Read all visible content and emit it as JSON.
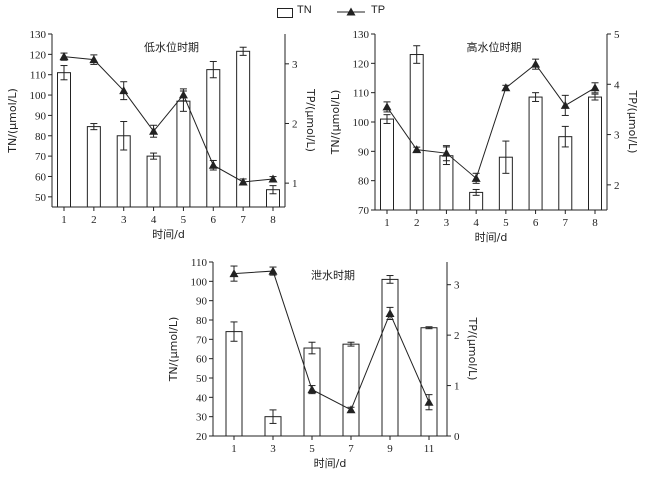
{
  "legend": {
    "tn_label": "TN",
    "tp_label": "TP"
  },
  "chart_data": [
    {
      "type": "bar",
      "title": "低水位时期",
      "xlabel": "时间/d",
      "ylabel": "TN/(μmol/L)",
      "y2label": "TP/(μmol/L)",
      "categories": [
        "1",
        "2",
        "3",
        "4",
        "5",
        "6",
        "7",
        "8"
      ],
      "ylim": [
        45,
        130
      ],
      "yticks": [
        50,
        60,
        70,
        80,
        90,
        100,
        110,
        120,
        130
      ],
      "y2lim": [
        0.6,
        3.5
      ],
      "y2ticks": [
        1,
        2,
        3
      ],
      "series": [
        {
          "name": "TN",
          "type": "bar",
          "axis": "left",
          "values": [
            111,
            84.5,
            80,
            70,
            97,
            112.5,
            121.5,
            53.5
          ],
          "errors": [
            3.5,
            1.5,
            7,
            1.5,
            5,
            4,
            2,
            2
          ]
        },
        {
          "name": "TP",
          "type": "line",
          "axis": "right",
          "values": [
            3.12,
            3.07,
            2.55,
            1.87,
            2.48,
            1.3,
            1.02,
            1.07
          ],
          "errors": [
            0.06,
            0.08,
            0.15,
            0.1,
            0.1,
            0.08,
            0.05,
            0.04
          ]
        }
      ]
    },
    {
      "type": "bar",
      "title": "高水位时期",
      "xlabel": "时间/d",
      "ylabel": "TN/(μmol/L)",
      "y2label": "TP/(μmol/L)",
      "categories": [
        "1",
        "2",
        "3",
        "4",
        "5",
        "6",
        "7",
        "8"
      ],
      "ylim": [
        70,
        130
      ],
      "yticks": [
        70,
        80,
        90,
        100,
        110,
        120,
        130
      ],
      "y2lim": [
        1.5,
        5
      ],
      "y2ticks": [
        2,
        3,
        4,
        5
      ],
      "series": [
        {
          "name": "TN",
          "type": "bar",
          "axis": "left",
          "values": [
            101,
            123,
            88.5,
            76,
            88,
            108.5,
            95,
            108.5
          ],
          "errors": [
            1.5,
            3,
            3,
            1,
            5.5,
            1.5,
            3.5,
            1
          ]
        },
        {
          "name": "TP",
          "type": "line",
          "axis": "right",
          "values": [
            3.55,
            2.7,
            2.63,
            2.13,
            3.93,
            4.4,
            3.58,
            3.93
          ],
          "errors": [
            0.1,
            0.05,
            0.15,
            0.1,
            0.05,
            0.1,
            0.2,
            0.1
          ]
        }
      ]
    },
    {
      "type": "bar",
      "title": "泄水时期",
      "xlabel": "时间/d",
      "ylabel": "TN/(μmol/L)",
      "y2label": "TP/(μmol/L)",
      "categories": [
        "1",
        "3",
        "5",
        "7",
        "9",
        "11"
      ],
      "ylim": [
        20,
        110
      ],
      "yticks": [
        20,
        30,
        40,
        50,
        60,
        70,
        80,
        90,
        100,
        110
      ],
      "y2lim": [
        0,
        3.45
      ],
      "y2ticks": [
        0,
        1,
        2,
        3
      ],
      "series": [
        {
          "name": "TN",
          "type": "bar",
          "axis": "left",
          "values": [
            74,
            30,
            65.5,
            67.5,
            101,
            76
          ],
          "errors": [
            5,
            3.5,
            3,
            1,
            2,
            0.5
          ]
        },
        {
          "name": "TP",
          "type": "line",
          "axis": "right",
          "values": [
            3.22,
            3.27,
            0.92,
            0.52,
            2.43,
            0.67
          ],
          "errors": [
            0.15,
            0.08,
            0.08,
            0.05,
            0.12,
            0.15
          ]
        }
      ]
    }
  ]
}
